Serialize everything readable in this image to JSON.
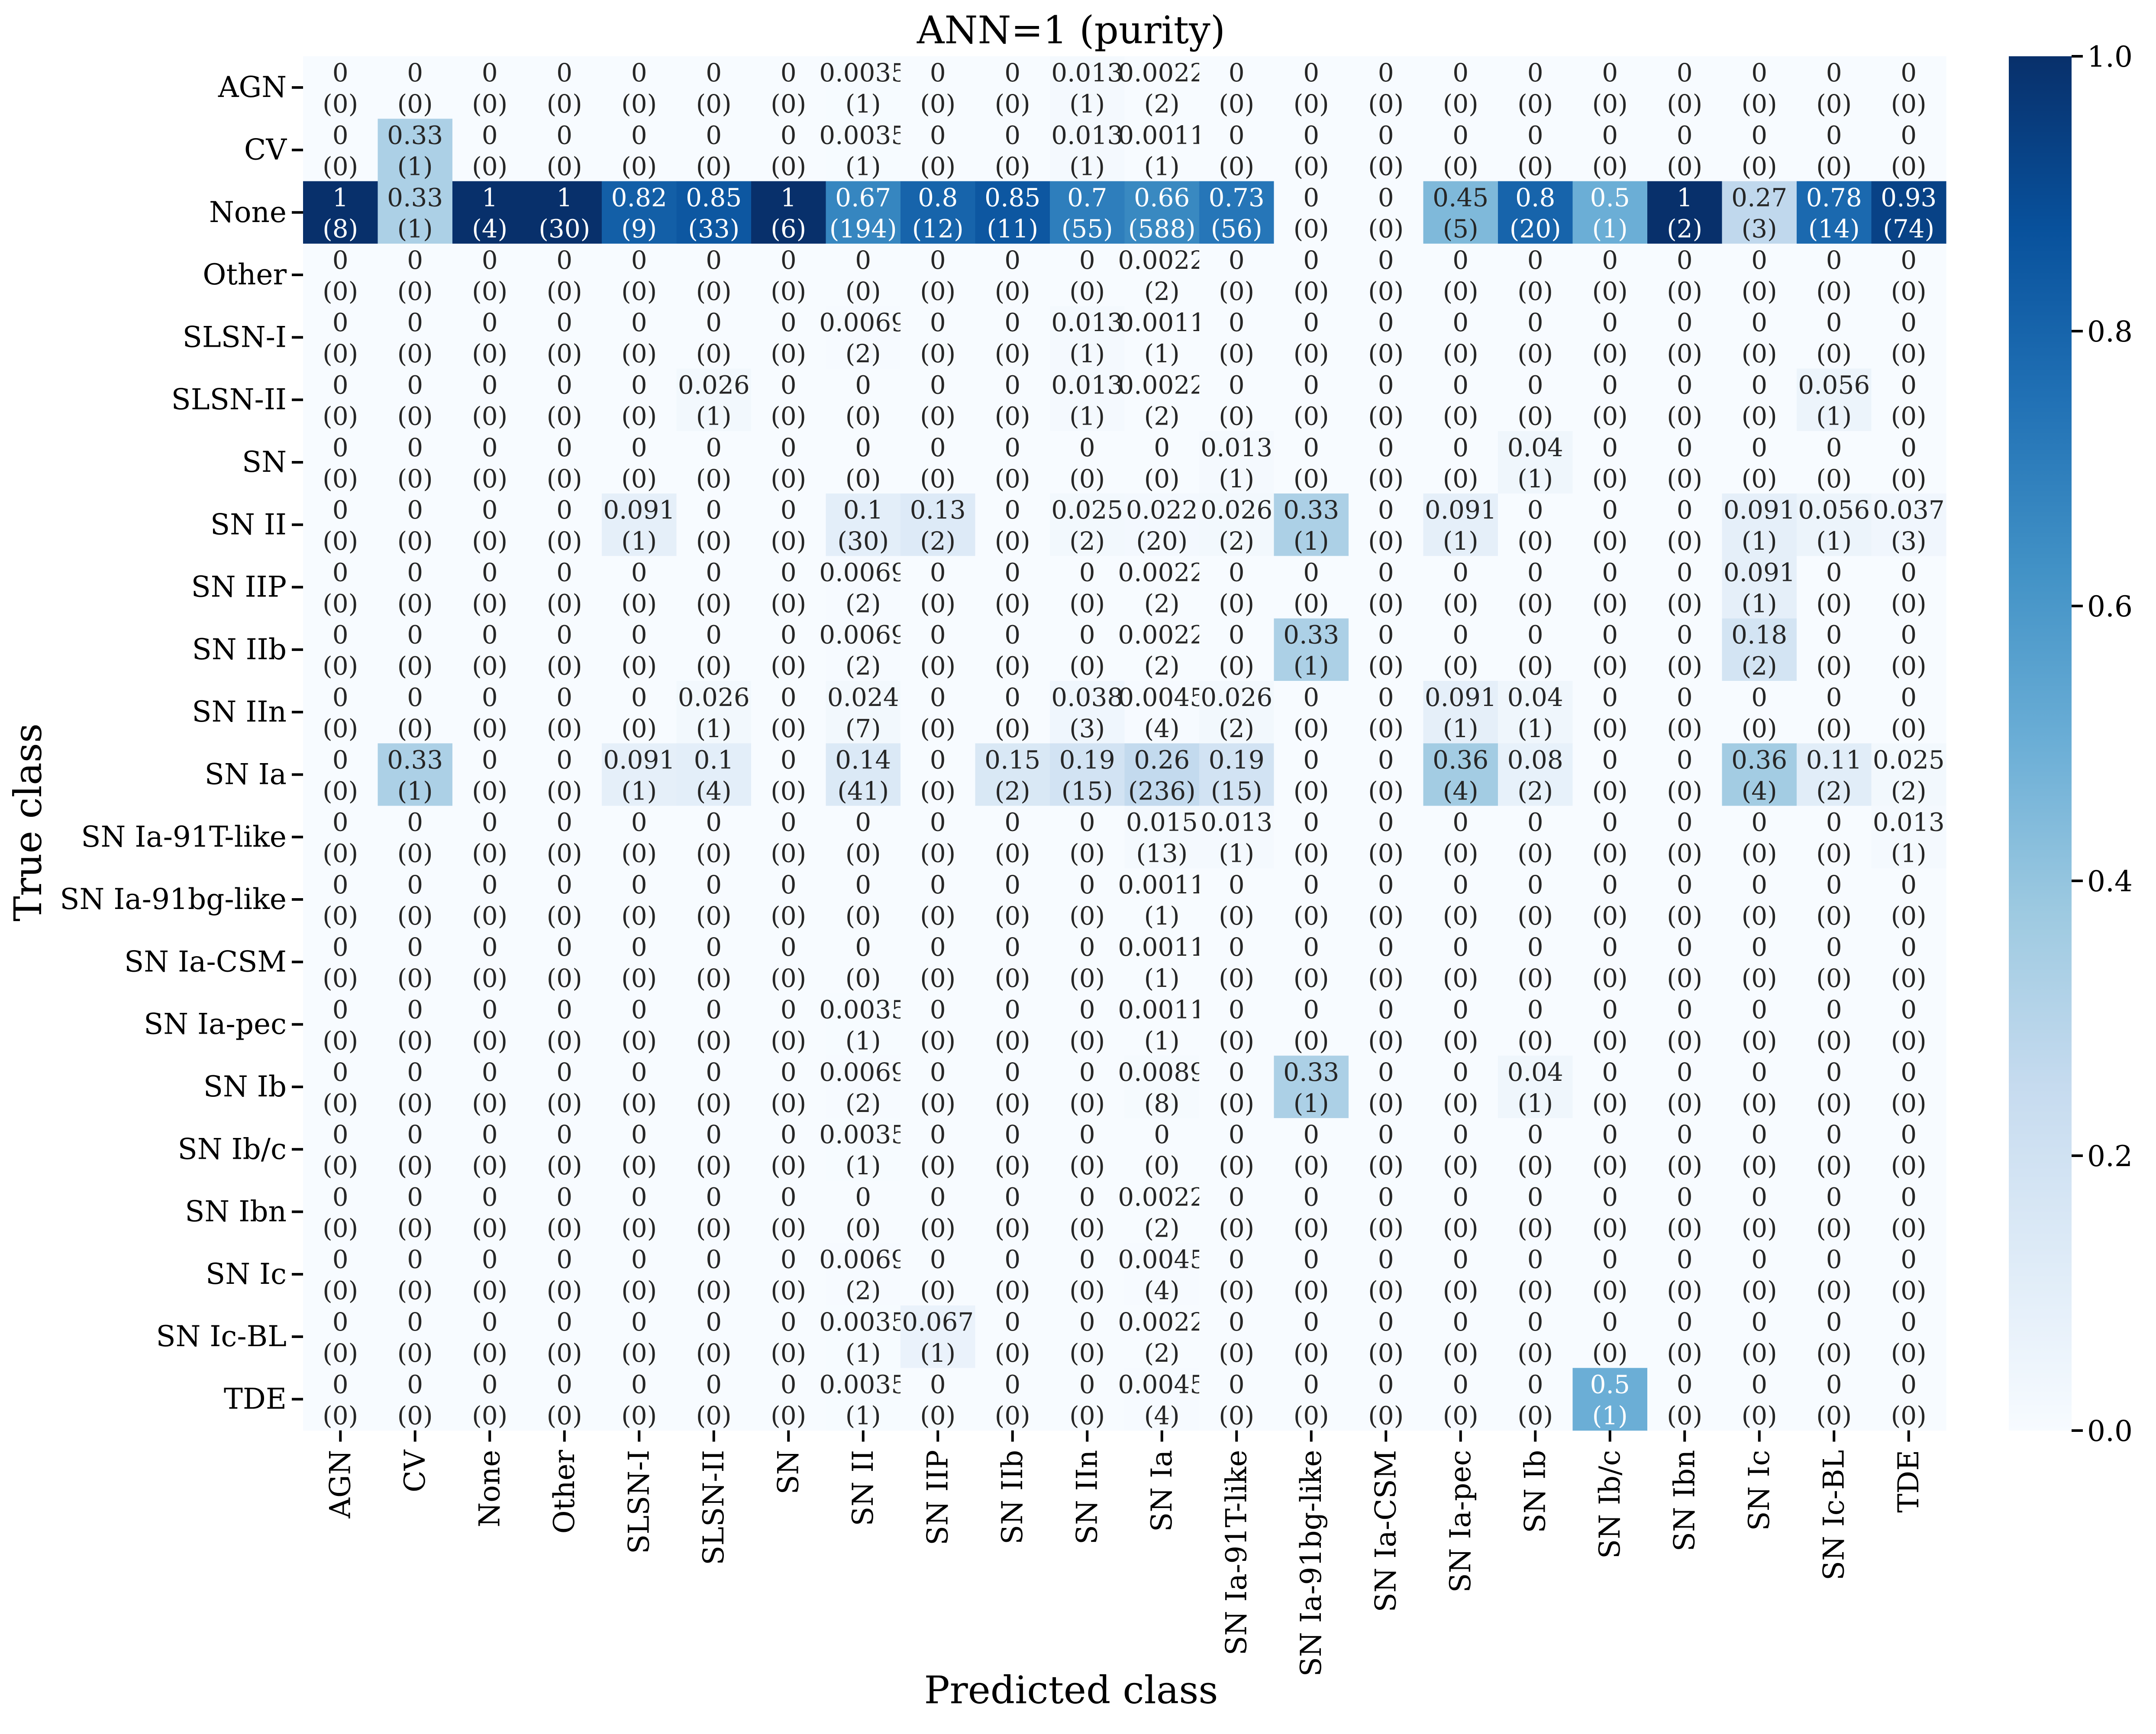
{
  "chart_data": {
    "type": "heatmap",
    "title": "ANN=1 (purity)",
    "xlabel": "Predicted class",
    "ylabel": "True class",
    "x_categories": [
      "AGN",
      "CV",
      "None",
      "Other",
      "SLSN-I",
      "SLSN-II",
      "SN",
      "SN II",
      "SN IIP",
      "SN IIb",
      "SN IIn",
      "SN Ia",
      "SN Ia-91T-like",
      "SN Ia-91bg-like",
      "SN Ia-CSM",
      "SN Ia-pec",
      "SN Ib",
      "SN Ib/c",
      "SN Ibn",
      "SN Ic",
      "SN Ic-BL",
      "TDE"
    ],
    "y_categories": [
      "AGN",
      "CV",
      "None",
      "Other",
      "SLSN-I",
      "SLSN-II",
      "SN",
      "SN II",
      "SN IIP",
      "SN IIb",
      "SN IIn",
      "SN Ia",
      "SN Ia-91T-like",
      "SN Ia-91bg-like",
      "SN Ia-CSM",
      "SN Ia-pec",
      "SN Ib",
      "SN Ib/c",
      "SN Ibn",
      "SN Ic",
      "SN Ic-BL",
      "TDE"
    ],
    "value_labels": [
      [
        "0",
        "0",
        "0",
        "0",
        "0",
        "0",
        "0",
        "0.0035",
        "0",
        "0",
        "0.013",
        "0.0022",
        "0",
        "0",
        "0",
        "0",
        "0",
        "0",
        "0",
        "0",
        "0",
        "0"
      ],
      [
        "0",
        "0.33",
        "0",
        "0",
        "0",
        "0",
        "0",
        "0.0035",
        "0",
        "0",
        "0.013",
        "0.0011",
        "0",
        "0",
        "0",
        "0",
        "0",
        "0",
        "0",
        "0",
        "0",
        "0"
      ],
      [
        "1",
        "0.33",
        "1",
        "1",
        "0.82",
        "0.85",
        "1",
        "0.67",
        "0.8",
        "0.85",
        "0.7",
        "0.66",
        "0.73",
        "0",
        "0",
        "0.45",
        "0.8",
        "0.5",
        "1",
        "0.27",
        "0.78",
        "0.93"
      ],
      [
        "0",
        "0",
        "0",
        "0",
        "0",
        "0",
        "0",
        "0",
        "0",
        "0",
        "0",
        "0.0022",
        "0",
        "0",
        "0",
        "0",
        "0",
        "0",
        "0",
        "0",
        "0",
        "0"
      ],
      [
        "0",
        "0",
        "0",
        "0",
        "0",
        "0",
        "0",
        "0.0069",
        "0",
        "0",
        "0.013",
        "0.0011",
        "0",
        "0",
        "0",
        "0",
        "0",
        "0",
        "0",
        "0",
        "0",
        "0"
      ],
      [
        "0",
        "0",
        "0",
        "0",
        "0",
        "0.026",
        "0",
        "0",
        "0",
        "0",
        "0.013",
        "0.0022",
        "0",
        "0",
        "0",
        "0",
        "0",
        "0",
        "0",
        "0",
        "0.056",
        "0"
      ],
      [
        "0",
        "0",
        "0",
        "0",
        "0",
        "0",
        "0",
        "0",
        "0",
        "0",
        "0",
        "0",
        "0.013",
        "0",
        "0",
        "0",
        "0.04",
        "0",
        "0",
        "0",
        "0",
        "0"
      ],
      [
        "0",
        "0",
        "0",
        "0",
        "0.091",
        "0",
        "0",
        "0.1",
        "0.13",
        "0",
        "0.025",
        "0.022",
        "0.026",
        "0.33",
        "0",
        "0.091",
        "0",
        "0",
        "0",
        "0.091",
        "0.056",
        "0.037"
      ],
      [
        "0",
        "0",
        "0",
        "0",
        "0",
        "0",
        "0",
        "0.0069",
        "0",
        "0",
        "0",
        "0.0022",
        "0",
        "0",
        "0",
        "0",
        "0",
        "0",
        "0",
        "0.091",
        "0",
        "0"
      ],
      [
        "0",
        "0",
        "0",
        "0",
        "0",
        "0",
        "0",
        "0.0069",
        "0",
        "0",
        "0",
        "0.0022",
        "0",
        "0.33",
        "0",
        "0",
        "0",
        "0",
        "0",
        "0.18",
        "0",
        "0"
      ],
      [
        "0",
        "0",
        "0",
        "0",
        "0",
        "0.026",
        "0",
        "0.024",
        "0",
        "0",
        "0.038",
        "0.0045",
        "0.026",
        "0",
        "0",
        "0.091",
        "0.04",
        "0",
        "0",
        "0",
        "0",
        "0"
      ],
      [
        "0",
        "0.33",
        "0",
        "0",
        "0.091",
        "0.1",
        "0",
        "0.14",
        "0",
        "0.15",
        "0.19",
        "0.26",
        "0.19",
        "0",
        "0",
        "0.36",
        "0.08",
        "0",
        "0",
        "0.36",
        "0.11",
        "0.025"
      ],
      [
        "0",
        "0",
        "0",
        "0",
        "0",
        "0",
        "0",
        "0",
        "0",
        "0",
        "0",
        "0.015",
        "0.013",
        "0",
        "0",
        "0",
        "0",
        "0",
        "0",
        "0",
        "0",
        "0.013"
      ],
      [
        "0",
        "0",
        "0",
        "0",
        "0",
        "0",
        "0",
        "0",
        "0",
        "0",
        "0",
        "0.0011",
        "0",
        "0",
        "0",
        "0",
        "0",
        "0",
        "0",
        "0",
        "0",
        "0"
      ],
      [
        "0",
        "0",
        "0",
        "0",
        "0",
        "0",
        "0",
        "0",
        "0",
        "0",
        "0",
        "0.0011",
        "0",
        "0",
        "0",
        "0",
        "0",
        "0",
        "0",
        "0",
        "0",
        "0"
      ],
      [
        "0",
        "0",
        "0",
        "0",
        "0",
        "0",
        "0",
        "0.0035",
        "0",
        "0",
        "0",
        "0.0011",
        "0",
        "0",
        "0",
        "0",
        "0",
        "0",
        "0",
        "0",
        "0",
        "0"
      ],
      [
        "0",
        "0",
        "0",
        "0",
        "0",
        "0",
        "0",
        "0.0069",
        "0",
        "0",
        "0",
        "0.0089",
        "0",
        "0.33",
        "0",
        "0",
        "0.04",
        "0",
        "0",
        "0",
        "0",
        "0"
      ],
      [
        "0",
        "0",
        "0",
        "0",
        "0",
        "0",
        "0",
        "0.0035",
        "0",
        "0",
        "0",
        "0",
        "0",
        "0",
        "0",
        "0",
        "0",
        "0",
        "0",
        "0",
        "0",
        "0"
      ],
      [
        "0",
        "0",
        "0",
        "0",
        "0",
        "0",
        "0",
        "0",
        "0",
        "0",
        "0",
        "0.0022",
        "0",
        "0",
        "0",
        "0",
        "0",
        "0",
        "0",
        "0",
        "0",
        "0"
      ],
      [
        "0",
        "0",
        "0",
        "0",
        "0",
        "0",
        "0",
        "0.0069",
        "0",
        "0",
        "0",
        "0.0045",
        "0",
        "0",
        "0",
        "0",
        "0",
        "0",
        "0",
        "0",
        "0",
        "0"
      ],
      [
        "0",
        "0",
        "0",
        "0",
        "0",
        "0",
        "0",
        "0.0035",
        "0.067",
        "0",
        "0",
        "0.0022",
        "0",
        "0",
        "0",
        "0",
        "0",
        "0",
        "0",
        "0",
        "0",
        "0"
      ],
      [
        "0",
        "0",
        "0",
        "0",
        "0",
        "0",
        "0",
        "0.0035",
        "0",
        "0",
        "0",
        "0.0045",
        "0",
        "0",
        "0",
        "0",
        "0",
        "0.5",
        "0",
        "0",
        "0",
        "0"
      ]
    ],
    "counts": [
      [
        0,
        0,
        0,
        0,
        0,
        0,
        0,
        1,
        0,
        0,
        1,
        2,
        0,
        0,
        0,
        0,
        0,
        0,
        0,
        0,
        0,
        0
      ],
      [
        0,
        1,
        0,
        0,
        0,
        0,
        0,
        1,
        0,
        0,
        1,
        1,
        0,
        0,
        0,
        0,
        0,
        0,
        0,
        0,
        0,
        0
      ],
      [
        8,
        1,
        4,
        30,
        9,
        33,
        6,
        194,
        12,
        11,
        55,
        588,
        56,
        0,
        0,
        5,
        20,
        1,
        2,
        3,
        14,
        74
      ],
      [
        0,
        0,
        0,
        0,
        0,
        0,
        0,
        0,
        0,
        0,
        0,
        2,
        0,
        0,
        0,
        0,
        0,
        0,
        0,
        0,
        0,
        0
      ],
      [
        0,
        0,
        0,
        0,
        0,
        0,
        0,
        2,
        0,
        0,
        1,
        1,
        0,
        0,
        0,
        0,
        0,
        0,
        0,
        0,
        0,
        0
      ],
      [
        0,
        0,
        0,
        0,
        0,
        1,
        0,
        0,
        0,
        0,
        1,
        2,
        0,
        0,
        0,
        0,
        0,
        0,
        0,
        0,
        1,
        0
      ],
      [
        0,
        0,
        0,
        0,
        0,
        0,
        0,
        0,
        0,
        0,
        0,
        0,
        1,
        0,
        0,
        0,
        1,
        0,
        0,
        0,
        0,
        0
      ],
      [
        0,
        0,
        0,
        0,
        1,
        0,
        0,
        30,
        2,
        0,
        2,
        20,
        2,
        1,
        0,
        1,
        0,
        0,
        0,
        1,
        1,
        3
      ],
      [
        0,
        0,
        0,
        0,
        0,
        0,
        0,
        2,
        0,
        0,
        0,
        2,
        0,
        0,
        0,
        0,
        0,
        0,
        0,
        1,
        0,
        0
      ],
      [
        0,
        0,
        0,
        0,
        0,
        0,
        0,
        2,
        0,
        0,
        0,
        2,
        0,
        1,
        0,
        0,
        0,
        0,
        0,
        2,
        0,
        0
      ],
      [
        0,
        0,
        0,
        0,
        0,
        1,
        0,
        7,
        0,
        0,
        3,
        4,
        2,
        0,
        0,
        1,
        1,
        0,
        0,
        0,
        0,
        0
      ],
      [
        0,
        1,
        0,
        0,
        1,
        4,
        0,
        41,
        0,
        2,
        15,
        236,
        15,
        0,
        0,
        4,
        2,
        0,
        0,
        4,
        2,
        2
      ],
      [
        0,
        0,
        0,
        0,
        0,
        0,
        0,
        0,
        0,
        0,
        0,
        13,
        1,
        0,
        0,
        0,
        0,
        0,
        0,
        0,
        0,
        1
      ],
      [
        0,
        0,
        0,
        0,
        0,
        0,
        0,
        0,
        0,
        0,
        0,
        1,
        0,
        0,
        0,
        0,
        0,
        0,
        0,
        0,
        0,
        0
      ],
      [
        0,
        0,
        0,
        0,
        0,
        0,
        0,
        0,
        0,
        0,
        0,
        1,
        0,
        0,
        0,
        0,
        0,
        0,
        0,
        0,
        0,
        0
      ],
      [
        0,
        0,
        0,
        0,
        0,
        0,
        0,
        1,
        0,
        0,
        0,
        1,
        0,
        0,
        0,
        0,
        0,
        0,
        0,
        0,
        0,
        0
      ],
      [
        0,
        0,
        0,
        0,
        0,
        0,
        0,
        2,
        0,
        0,
        0,
        8,
        0,
        1,
        0,
        0,
        1,
        0,
        0,
        0,
        0,
        0
      ],
      [
        0,
        0,
        0,
        0,
        0,
        0,
        0,
        1,
        0,
        0,
        0,
        0,
        0,
        0,
        0,
        0,
        0,
        0,
        0,
        0,
        0,
        0
      ],
      [
        0,
        0,
        0,
        0,
        0,
        0,
        0,
        0,
        0,
        0,
        0,
        2,
        0,
        0,
        0,
        0,
        0,
        0,
        0,
        0,
        0,
        0
      ],
      [
        0,
        0,
        0,
        0,
        0,
        0,
        0,
        2,
        0,
        0,
        0,
        4,
        0,
        0,
        0,
        0,
        0,
        0,
        0,
        0,
        0,
        0
      ],
      [
        0,
        0,
        0,
        0,
        0,
        0,
        0,
        1,
        1,
        0,
        0,
        2,
        0,
        0,
        0,
        0,
        0,
        0,
        0,
        0,
        0,
        0
      ],
      [
        0,
        0,
        0,
        0,
        0,
        0,
        0,
        1,
        0,
        0,
        0,
        4,
        0,
        0,
        0,
        0,
        0,
        1,
        0,
        0,
        0,
        0
      ]
    ],
    "colorbar": {
      "range": [
        0,
        1
      ],
      "ticks": [
        "0.0",
        "0.2",
        "0.4",
        "0.6",
        "0.8",
        "1.0"
      ],
      "colormap": "Blues",
      "low_color": "#f7fbff",
      "high_color": "#08306b"
    },
    "grid": false,
    "legend": "colorbar-right"
  }
}
